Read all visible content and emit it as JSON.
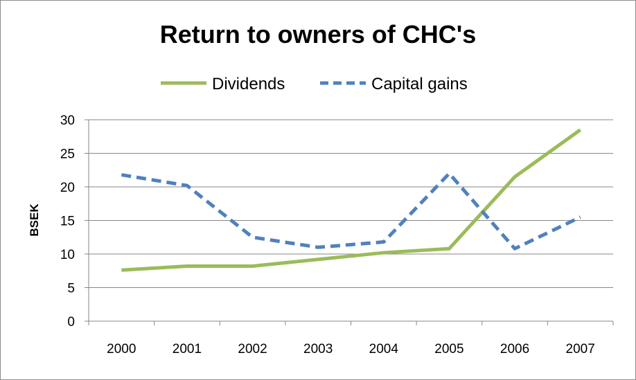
{
  "chart_data": {
    "type": "line",
    "title": "Return to owners of CHC's",
    "xlabel": "",
    "ylabel": "BSEK",
    "categories": [
      "2000",
      "2001",
      "2002",
      "2003",
      "2004",
      "2005",
      "2006",
      "2007"
    ],
    "ylim": [
      0,
      30
    ],
    "yticks": [
      0,
      5,
      10,
      15,
      20,
      25,
      30
    ],
    "grid": true,
    "legend_position": "top",
    "series": [
      {
        "name": "Dividends",
        "values": [
          7.6,
          8.2,
          8.2,
          9.2,
          10.2,
          10.8,
          21.5,
          28.5
        ],
        "color": "#9BBB59",
        "style": "solid"
      },
      {
        "name": "Capital gains",
        "values": [
          21.8,
          20.2,
          12.5,
          11.0,
          11.8,
          22.0,
          10.8,
          15.5
        ],
        "color": "#4F81BD",
        "style": "dashed"
      }
    ]
  }
}
